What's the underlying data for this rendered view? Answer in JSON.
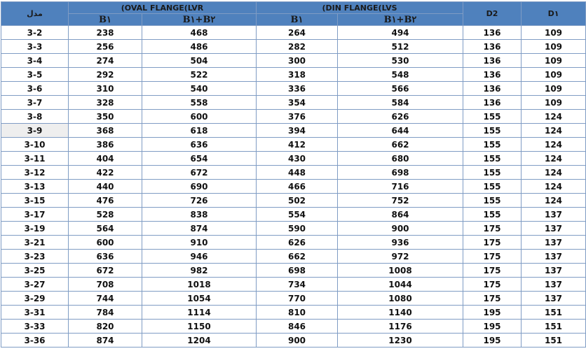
{
  "header": {
    "model": "مدل",
    "oval_group": "(OVAL FLANGE(LVR",
    "din_group": "(DIN FLANGE(LVS",
    "b1": "B۱",
    "b1b2": "B۱+B۲",
    "d2": "D2",
    "d1": "D۱"
  },
  "colors": {
    "header_bg": "#4f81bd",
    "border": "#7f9cc4",
    "highlight": "#eeeeee"
  },
  "rows": [
    [
      "3-2",
      "238",
      "468",
      "264",
      "494",
      "136",
      "109"
    ],
    [
      "3-3",
      "256",
      "486",
      "282",
      "512",
      "136",
      "109"
    ],
    [
      "3-4",
      "274",
      "504",
      "300",
      "530",
      "136",
      "109"
    ],
    [
      "3-5",
      "292",
      "522",
      "318",
      "548",
      "136",
      "109"
    ],
    [
      "3-6",
      "310",
      "540",
      "336",
      "566",
      "136",
      "109"
    ],
    [
      "3-7",
      "328",
      "558",
      "354",
      "584",
      "136",
      "109"
    ],
    [
      "3-8",
      "350",
      "600",
      "376",
      "626",
      "155",
      "124"
    ],
    [
      "3-9",
      "368",
      "618",
      "394",
      "644",
      "155",
      "124"
    ],
    [
      "3-10",
      "386",
      "636",
      "412",
      "662",
      "155",
      "124"
    ],
    [
      "3-11",
      "404",
      "654",
      "430",
      "680",
      "155",
      "124"
    ],
    [
      "3-12",
      "422",
      "672",
      "448",
      "698",
      "155",
      "124"
    ],
    [
      "3-13",
      "440",
      "690",
      "466",
      "716",
      "155",
      "124"
    ],
    [
      "3-15",
      "476",
      "726",
      "502",
      "752",
      "155",
      "124"
    ],
    [
      "3-17",
      "528",
      "838",
      "554",
      "864",
      "155",
      "137"
    ],
    [
      "3-19",
      "564",
      "874",
      "590",
      "900",
      "175",
      "137"
    ],
    [
      "3-21",
      "600",
      "910",
      "626",
      "936",
      "175",
      "137"
    ],
    [
      "3-23",
      "636",
      "946",
      "662",
      "972",
      "175",
      "137"
    ],
    [
      "3-25",
      "672",
      "982",
      "698",
      "1008",
      "175",
      "137"
    ],
    [
      "3-27",
      "708",
      "1018",
      "734",
      "1044",
      "175",
      "137"
    ],
    [
      "3-29",
      "744",
      "1054",
      "770",
      "1080",
      "175",
      "137"
    ],
    [
      "3-31",
      "784",
      "1114",
      "810",
      "1140",
      "195",
      "151"
    ],
    [
      "3-33",
      "820",
      "1150",
      "846",
      "1176",
      "195",
      "151"
    ],
    [
      "3-36",
      "874",
      "1204",
      "900",
      "1230",
      "195",
      "151"
    ]
  ]
}
